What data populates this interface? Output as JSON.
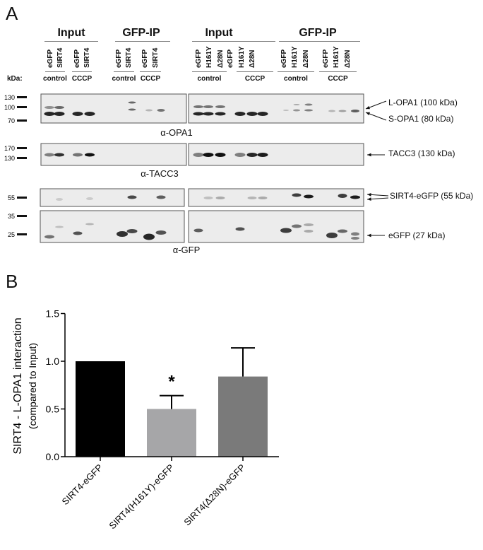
{
  "panel_a": {
    "label": "A",
    "headers": [
      "Input",
      "GFP-IP",
      "Input",
      "GFP-IP"
    ],
    "lanes_left": [
      "eGFP",
      "SIRT4",
      "eGFP",
      "SIRT4",
      "eGFP",
      "SIRT4",
      "eGFP",
      "SIRT4"
    ],
    "lanes_right": [
      "eGFP",
      "H161Y",
      "Δ28N",
      "eGFP",
      "H161Y",
      "Δ28N",
      "eGFP",
      "H161Y",
      "Δ28N",
      "eGFP",
      "H161Y",
      "Δ28N"
    ],
    "conditions_left": [
      "control",
      "CCCP",
      "control",
      "CCCP"
    ],
    "conditions_right": [
      "control",
      "CCCP",
      "control",
      "CCCP"
    ],
    "kda_label": "kDa:",
    "markers": [
      "130",
      "100",
      "70",
      "170",
      "130",
      "55",
      "35",
      "25"
    ],
    "antibodies": [
      "α-OPA1",
      "α-TACC3",
      "α-GFP"
    ],
    "annotations": [
      "L-OPA1 (100 kDa)",
      "S-OPA1 (80 kDa)",
      "TACC3 (130 kDa)",
      "SIRT4-eGFP (55 kDa)",
      "eGFP (27 kDa)"
    ]
  },
  "panel_b": {
    "label": "B"
  },
  "chart_data": {
    "type": "bar",
    "categories": [
      "SIRT4-eGFP",
      "SIRT4(H161Y)-eGFP",
      "SIRT4(Δ28N)-eGFP"
    ],
    "values": [
      1.0,
      0.5,
      0.84
    ],
    "error_upper": [
      0,
      0.14,
      0.3
    ],
    "colors": [
      "#000000",
      "#a6a6a8",
      "#7a7a7a"
    ],
    "significance": [
      "",
      "*",
      ""
    ],
    "ylabel": "SIRT4 - L-OPA1 interaction",
    "ylabel2": "(compared to Input)",
    "ylim": [
      0,
      1.5
    ],
    "yticks": [
      "0.0",
      "0.5",
      "1.0",
      "1.5"
    ],
    "grid": false
  }
}
